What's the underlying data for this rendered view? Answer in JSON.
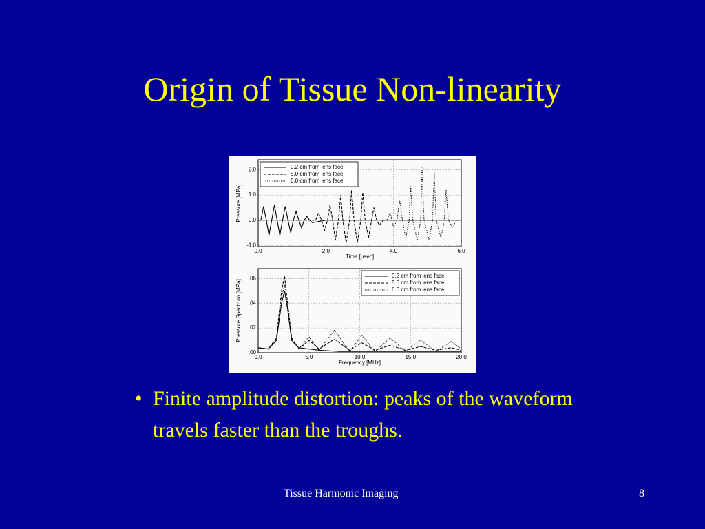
{
  "slide": {
    "title": "Origin of Tissue Non-linearity",
    "bullet": "Finite amplitude distortion: peaks of the waveform travels faster than the troughs.",
    "footer": "Tissue Harmonic Imaging",
    "page_number": "8"
  },
  "chart_data": [
    {
      "type": "line",
      "x_label": "Time [μsec]",
      "y_label": "Pressure [MPa]",
      "xlim": [
        0,
        6
      ],
      "ylim": [
        -1.05,
        2.4
      ],
      "xticks": [
        {
          "value": 0,
          "label": "0.0"
        },
        {
          "value": 2,
          "label": "2.0"
        },
        {
          "value": 4,
          "label": "4.0"
        },
        {
          "value": 6,
          "label": "6.0"
        }
      ],
      "yticks": [
        {
          "value": -1,
          "label": "-1.0"
        },
        {
          "value": 0,
          "label": "0.0"
        },
        {
          "value": 1,
          "label": "1.0"
        },
        {
          "value": 2,
          "label": "2.0"
        }
      ],
      "grid": true,
      "legend": "upper left",
      "series": [
        {
          "name": "0.2 cm from lens face",
          "color": "#000000",
          "style": "solid",
          "x": [
            0,
            0.08,
            0.16,
            0.24,
            0.32,
            0.4,
            0.48,
            0.56,
            0.64,
            0.72,
            0.8,
            0.88,
            0.96,
            1.04,
            1.12,
            1.2,
            1.28,
            1.36,
            1.44,
            1.52,
            1.6,
            2.0,
            6.0
          ],
          "values": [
            0,
            0,
            0.55,
            0,
            -0.6,
            0,
            0.6,
            0,
            -0.6,
            0,
            0.55,
            0,
            -0.5,
            0,
            0.35,
            0,
            -0.3,
            0,
            0.15,
            0,
            -0.1,
            0,
            0
          ]
        },
        {
          "name": "5.0 cm from lens face",
          "color": "#000000",
          "style": "dashed",
          "x": [
            0,
            1.6,
            1.7,
            1.78,
            1.87,
            1.96,
            2.05,
            2.12,
            2.2,
            2.28,
            2.37,
            2.44,
            2.5,
            2.6,
            2.7,
            2.76,
            2.83,
            2.93,
            3.03,
            3.09,
            3.16,
            3.26,
            3.35,
            3.42,
            3.5,
            3.58,
            3.7,
            6.0
          ],
          "values": [
            0,
            0,
            0,
            0.3,
            0,
            -0.4,
            0,
            0.6,
            0,
            -0.8,
            0,
            1.0,
            0,
            -0.9,
            0,
            1.2,
            0,
            -0.9,
            0,
            1.1,
            0,
            -0.7,
            0,
            0.5,
            0,
            -0.2,
            0,
            0
          ]
        },
        {
          "name": "6.0 cm from lens face",
          "color": "#000000",
          "style": "dotted",
          "x": [
            0,
            3.8,
            3.9,
            4.0,
            4.1,
            4.18,
            4.26,
            4.36,
            4.46,
            4.5,
            4.57,
            4.7,
            4.8,
            4.84,
            4.9,
            5.05,
            5.15,
            5.2,
            5.26,
            5.4,
            5.5,
            5.55,
            5.62,
            5.75,
            5.85,
            6.0
          ],
          "values": [
            0,
            0,
            0.3,
            -0.3,
            0,
            0.8,
            0,
            -0.7,
            0,
            1.4,
            0,
            -0.8,
            0,
            2.1,
            0,
            -0.8,
            0,
            1.9,
            0,
            -0.7,
            0,
            1.2,
            0,
            -0.3,
            0,
            0
          ]
        }
      ]
    },
    {
      "type": "line",
      "x_label": "Frequency [MHz]",
      "y_label": "Pressure Spectrum [MPa]",
      "xlim": [
        0,
        20
      ],
      "ylim": [
        0,
        0.068
      ],
      "xticks": [
        {
          "value": 0,
          "label": "0.0"
        },
        {
          "value": 5,
          "label": "5.0"
        },
        {
          "value": 10,
          "label": "10.0"
        },
        {
          "value": 15,
          "label": "15.0"
        },
        {
          "value": 20,
          "label": "20.0"
        }
      ],
      "yticks": [
        {
          "value": 0,
          "label": ".00"
        },
        {
          "value": 0.02,
          "label": ".02"
        },
        {
          "value": 0.04,
          "label": ".04"
        },
        {
          "value": 0.06,
          "label": ".06"
        }
      ],
      "grid": true,
      "legend": "upper right",
      "series": [
        {
          "name": "0.2 cm from lens face",
          "color": "#000000",
          "style": "solid",
          "x": [
            0,
            1,
            1.8,
            2.3,
            2.6,
            2.9,
            3.3,
            4,
            5,
            6,
            8,
            10,
            20
          ],
          "values": [
            0.004,
            0.003,
            0.01,
            0.04,
            0.05,
            0.035,
            0.01,
            0.004,
            0.003,
            0.002,
            0.001,
            0.001,
            0.001
          ]
        },
        {
          "name": "5.0 cm from lens face",
          "color": "#000000",
          "style": "dashed",
          "x": [
            0,
            1,
            1.8,
            2.3,
            2.6,
            2.9,
            3.3,
            4,
            5,
            6,
            7.5,
            9,
            10.2,
            11.5,
            13,
            14.5,
            16,
            17.5,
            19,
            20
          ],
          "values": [
            0.004,
            0.003,
            0.012,
            0.05,
            0.062,
            0.04,
            0.012,
            0.003,
            0.01,
            0.003,
            0.011,
            0.002,
            0.008,
            0.002,
            0.006,
            0.002,
            0.005,
            0.002,
            0.004,
            0.002
          ]
        },
        {
          "name": "6.0 cm from lens face",
          "color": "#000000",
          "style": "dotted",
          "x": [
            0,
            1,
            1.8,
            2.3,
            2.6,
            2.9,
            3.3,
            4,
            5,
            6,
            7.5,
            9,
            10.2,
            11.5,
            13,
            14.5,
            16,
            17.5,
            19,
            20
          ],
          "values": [
            0.004,
            0.003,
            0.01,
            0.045,
            0.055,
            0.038,
            0.01,
            0.003,
            0.013,
            0.002,
            0.018,
            0.001,
            0.014,
            0.001,
            0.012,
            0.001,
            0.01,
            0.001,
            0.009,
            0.003
          ]
        }
      ]
    }
  ]
}
